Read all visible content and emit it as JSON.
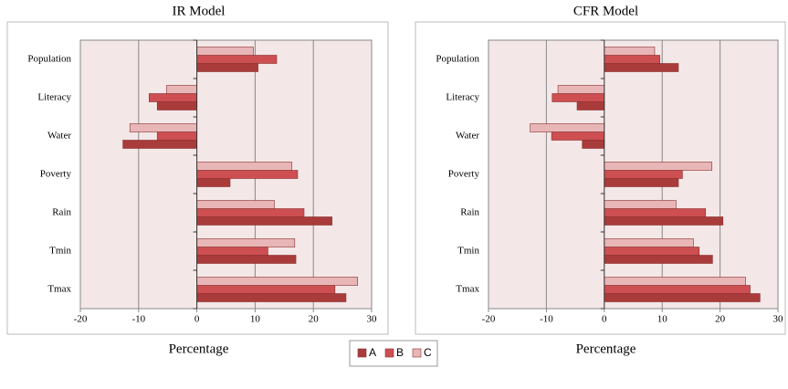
{
  "chart_data": [
    {
      "type": "hbar",
      "title": "IR Model",
      "xlabel": "Percentage",
      "categories": [
        "Population",
        "Literacy",
        "Water",
        "Poverty",
        "Rain",
        "Tmin",
        "Tmax"
      ],
      "series": [
        {
          "name": "A",
          "color": "#a93b3b",
          "values": [
            10.5,
            -6.8,
            -12.7,
            5.7,
            23.2,
            17.0,
            25.6
          ]
        },
        {
          "name": "B",
          "color": "#cd4f52",
          "values": [
            13.7,
            -8.2,
            -6.8,
            17.3,
            18.4,
            12.2,
            23.7
          ]
        },
        {
          "name": "C",
          "color": "#e9b6b7",
          "values": [
            9.7,
            -5.2,
            -11.5,
            16.3,
            13.3,
            16.8,
            27.6
          ]
        }
      ],
      "xlim": [
        -20,
        30
      ],
      "xticks": [
        -20,
        -10,
        0,
        10,
        20,
        30
      ],
      "grid": true
    },
    {
      "type": "hbar",
      "title": "CFR Model",
      "xlabel": "Percentage",
      "categories": [
        "Population",
        "Literacy",
        "Water",
        "Poverty",
        "Rain",
        "Tmin",
        "Tmax"
      ],
      "series": [
        {
          "color": "#a93b3b",
          "values": [
            12.8,
            -4.7,
            -3.8,
            12.8,
            20.5,
            18.7,
            26.9
          ]
        },
        {
          "color": "#cd4f52",
          "values": [
            9.6,
            -9.0,
            -9.1,
            13.5,
            17.5,
            16.4,
            25.2
          ]
        },
        {
          "color": "#e9b6b7",
          "values": [
            8.7,
            -8.0,
            -12.8,
            18.6,
            12.4,
            15.4,
            24.4
          ]
        }
      ],
      "xlim": [
        -20,
        30
      ],
      "xticks": [
        -20,
        -10,
        0,
        10,
        20,
        30
      ],
      "grid": true
    }
  ]
}
